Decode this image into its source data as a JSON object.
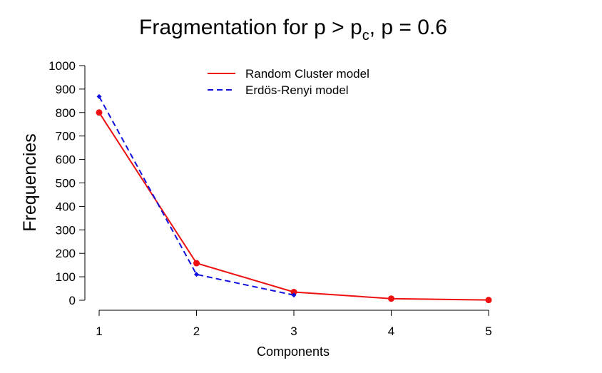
{
  "chart_data": {
    "type": "line",
    "title_main": "Fragmentation for p > p",
    "title_sub": "c",
    "title_rest": ", p =  0.6",
    "xlabel": "Components",
    "ylabel": "Frequencies",
    "x": [
      1,
      2,
      3,
      4,
      5
    ],
    "xlim": [
      1,
      5
    ],
    "ylim": [
      0,
      1000
    ],
    "xticks": [
      "1",
      "2",
      "3",
      "4",
      "5"
    ],
    "yticks": [
      "0",
      "100",
      "200",
      "300",
      "400",
      "500",
      "600",
      "700",
      "800",
      "900",
      "1000"
    ],
    "grid": false,
    "legend_position": "top-center",
    "series": [
      {
        "name": "Random Cluster model",
        "color": "#ee1111",
        "line_style": "solid",
        "marker": "circle",
        "x": [
          1,
          2,
          3,
          4,
          5
        ],
        "values": [
          800,
          158,
          35,
          7,
          1
        ]
      },
      {
        "name": "Erdös-Renyi model",
        "color": "#1111dd",
        "line_style": "dashed",
        "marker": "diamond",
        "x": [
          1,
          2,
          3
        ],
        "values": [
          868,
          110,
          22
        ]
      }
    ]
  }
}
